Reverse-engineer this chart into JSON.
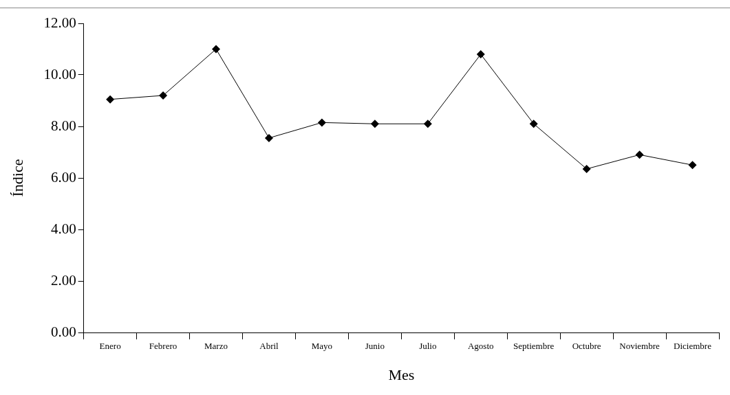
{
  "chart_data": {
    "type": "line",
    "xlabel": "Mes",
    "ylabel": "Índice",
    "categories": [
      "Enero",
      "Febrero",
      "Marzo",
      "Abril",
      "Mayo",
      "Junio",
      "Julio",
      "Agosto",
      "Septiembre",
      "Octubre",
      "Noviembre",
      "Diciembre"
    ],
    "series": [
      {
        "color": "#000000",
        "values": [
          9.05,
          9.2,
          11.0,
          7.55,
          8.15,
          8.1,
          8.1,
          10.8,
          8.1,
          6.35,
          6.9,
          6.5
        ]
      }
    ],
    "ylim": [
      0,
      12
    ],
    "yticks": [
      {
        "value": 0,
        "label": "0.00"
      },
      {
        "value": 2,
        "label": "2.00"
      },
      {
        "value": 4,
        "label": "4.00"
      },
      {
        "value": 6,
        "label": "6.00"
      },
      {
        "value": 8,
        "label": "8.00"
      },
      {
        "value": 10,
        "label": "10.00"
      },
      {
        "value": 12,
        "label": "12.00"
      }
    ],
    "grid": false,
    "legend": false,
    "marker": "diamond",
    "line_style": "solid"
  }
}
